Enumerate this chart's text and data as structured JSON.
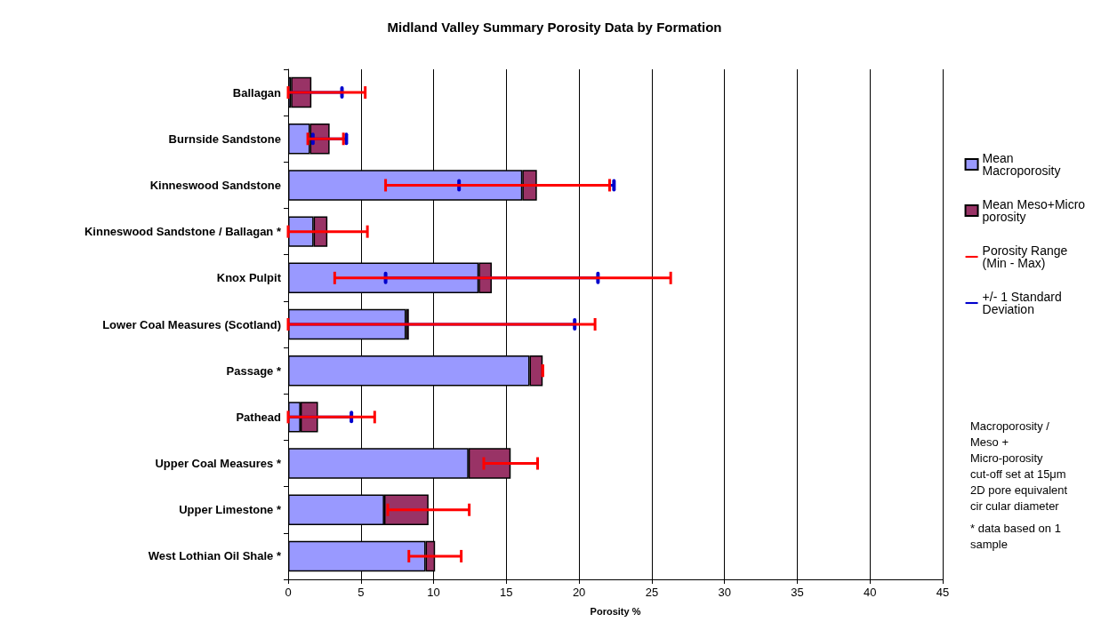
{
  "chart_data": {
    "type": "bar",
    "orientation": "horizontal",
    "stacked": true,
    "title": "Midland Valley Summary Porosity Data by Formation",
    "xlabel": "Porosity %",
    "categories": [
      "Ballagan",
      "Burnside Sandstone",
      "Kinneswood Sandstone",
      "Kinneswood Sandstone / Ballagan *",
      "Knox Pulpit",
      "Lower Coal Measures (Scotland)",
      "Passage *",
      "Pathead",
      "Upper Coal Measures *",
      "Upper Limestone *",
      "West Lothian Oil Shale *"
    ],
    "series": [
      {
        "name": "Mean Macroporosity",
        "color": "#9999ff",
        "values": [
          0.2,
          1.5,
          16.1,
          1.75,
          13.1,
          8.1,
          16.6,
          0.85,
          12.4,
          6.6,
          9.45
        ],
        "errors": [
          [
            0,
            3.7
          ],
          [
            1.7,
            4.0
          ],
          [
            11.75,
            22.4
          ],
          null,
          [
            6.7,
            21.3
          ],
          [
            0,
            19.7
          ],
          null,
          [
            0,
            4.35
          ],
          null,
          null,
          null
        ]
      },
      {
        "name": "Mean Meso+Micro porosity",
        "color": "#993366",
        "values": [
          1.4,
          1.35,
          1.0,
          0.95,
          0.9,
          0.2,
          0.9,
          1.2,
          2.9,
          3.05,
          0.65
        ],
        "errors": [
          [
            0,
            5.3
          ],
          [
            1.35,
            3.8
          ],
          [
            6.7,
            22.1
          ],
          [
            0,
            5.45
          ],
          [
            3.2,
            26.3
          ],
          [
            0,
            21.1
          ],
          [
            17.5,
            17.5
          ],
          [
            0,
            5.95
          ],
          [
            13.45,
            17.15
          ],
          [
            6.85,
            12.45
          ],
          [
            8.3,
            11.9
          ]
        ]
      }
    ],
    "xlim": [
      0,
      45
    ],
    "xticks": [
      0,
      5,
      10,
      15,
      20,
      25,
      30,
      35,
      40,
      45
    ],
    "grid": "x",
    "legend": "right",
    "annotations": [
      "Porosity Range (Min - Max)",
      "+/- 1 Standard Deviation",
      "Macroporosity / Meso + Micro-porosity cut-off set at 15μm 2D pore equivalent cir cular diameter",
      "* data based on 1 sample"
    ]
  }
}
